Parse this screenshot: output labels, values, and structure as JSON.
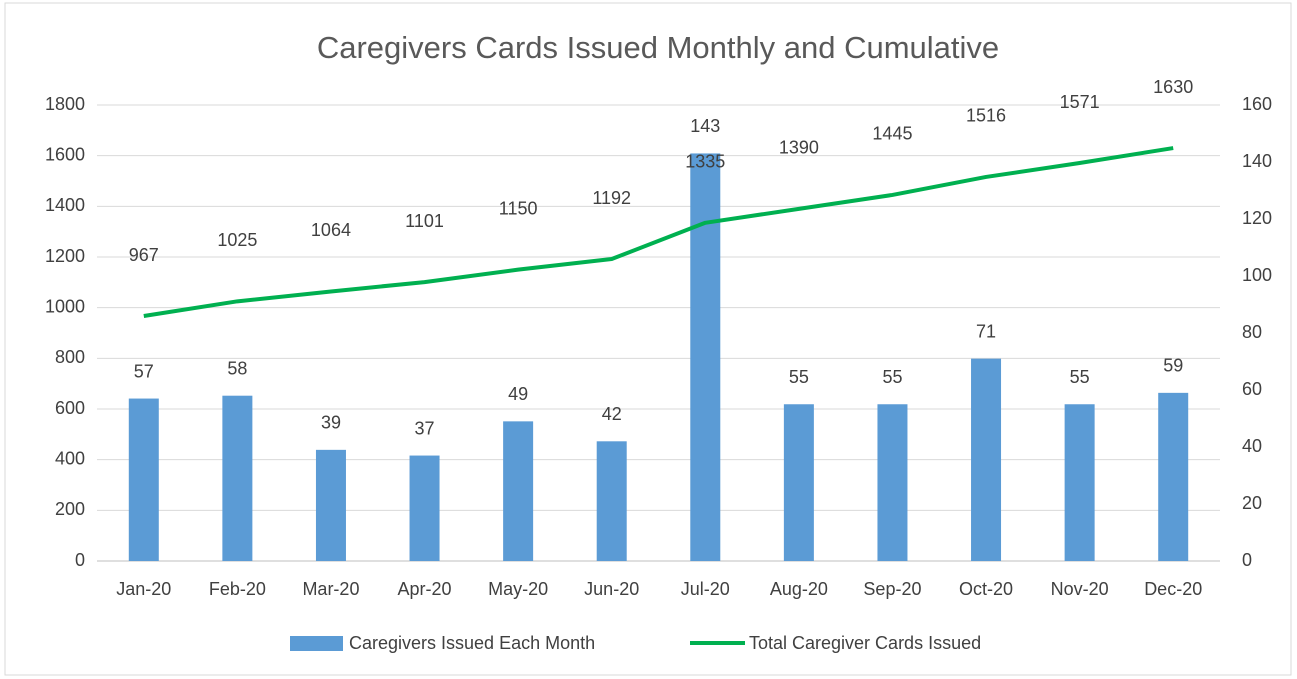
{
  "chart_data": {
    "type": "combo",
    "title": "Caregivers Cards Issued Monthly and Cumulative",
    "categories": [
      "Jan-20",
      "Feb-20",
      "Mar-20",
      "Apr-20",
      "May-20",
      "Jun-20",
      "Jul-20",
      "Aug-20",
      "Sep-20",
      "Oct-20",
      "Nov-20",
      "Dec-20"
    ],
    "series": [
      {
        "name": "Caregivers Issued Each Month",
        "type": "bar",
        "axis": "y2",
        "color": "#5b9bd5",
        "values": [
          57,
          58,
          39,
          37,
          49,
          42,
          143,
          55,
          55,
          71,
          55,
          59
        ]
      },
      {
        "name": "Total Caregiver Cards Issued",
        "type": "line",
        "axis": "y",
        "color": "#00b050",
        "values": [
          967,
          1025,
          1064,
          1101,
          1150,
          1192,
          1335,
          1390,
          1445,
          1516,
          1571,
          1630
        ]
      }
    ],
    "ylim": [
      0,
      1800
    ],
    "yticks": [
      0,
      200,
      400,
      600,
      800,
      1000,
      1200,
      1400,
      1600,
      1800
    ],
    "y2lim": [
      0,
      160
    ],
    "y2ticks": [
      0,
      20,
      40,
      60,
      80,
      100,
      120,
      140,
      160
    ],
    "grid": true,
    "legend": "bottom"
  }
}
